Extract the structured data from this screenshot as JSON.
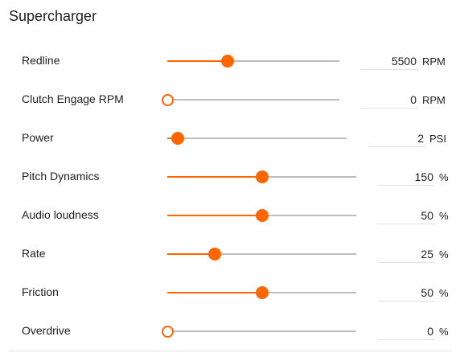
{
  "panel": {
    "title": "Supercharger"
  },
  "accent_color": "#ff6600",
  "rows": [
    {
      "label": "Redline",
      "value": "5500",
      "unit": "RPM",
      "level": 0.35
    },
    {
      "label": "Clutch Engage RPM",
      "value": "0",
      "unit": "RPM",
      "level": 0.0
    },
    {
      "label": "Power",
      "value": "2",
      "unit": "PSI",
      "level": 0.06
    },
    {
      "label": "Pitch Dynamics",
      "value": "150",
      "unit": "%",
      "level": 0.5
    },
    {
      "label": "Audio loudness",
      "value": "50",
      "unit": "%",
      "level": 0.5
    },
    {
      "label": "Rate",
      "value": "25",
      "unit": "%",
      "level": 0.25
    },
    {
      "label": "Friction",
      "value": "50",
      "unit": "%",
      "level": 0.5
    },
    {
      "label": "Overdrive",
      "value": "0",
      "unit": "%",
      "level": 0.0
    }
  ]
}
